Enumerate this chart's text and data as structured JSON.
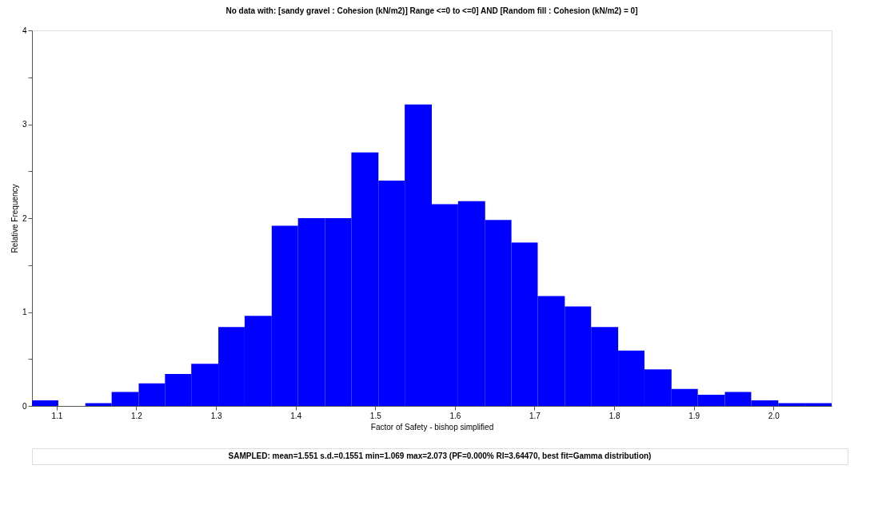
{
  "chart_data": {
    "type": "histogram",
    "title": "No data with: [sandy gravel : Cohesion (kN/m2)] Range <=0 to <=0] AND [Random fill : Cohesion (kN/m2) = 0]",
    "xlabel": "Factor of Safety - bishop simplified",
    "ylabel": "Relative Frequency",
    "annotations": [
      "SAMPLED: mean=1.551 s.d.=0.1551 min=1.069 max=2.073 (PF=0.000% RI=3.64470, best fit=Gamma distribution)"
    ],
    "bins": [
      1.069,
      1.102,
      1.136,
      1.169,
      1.203,
      1.236,
      1.269,
      1.303,
      1.336,
      1.37,
      1.403,
      1.437,
      1.47,
      1.504,
      1.537,
      1.571,
      1.604,
      1.638,
      1.671,
      1.704,
      1.738,
      1.771,
      1.805,
      1.838,
      1.872,
      1.905,
      1.939,
      1.972,
      2.006,
      2.039,
      2.073
    ],
    "values": [
      0.06,
      0,
      0.03,
      0.15,
      0.24,
      0.34,
      0.45,
      0.84,
      0.96,
      1.92,
      2.0,
      2.0,
      2.7,
      2.4,
      3.21,
      2.15,
      2.18,
      1.98,
      1.74,
      1.17,
      1.06,
      0.84,
      0.59,
      0.39,
      0.18,
      0.12,
      0.15,
      0.06,
      0.03,
      0.03
    ],
    "color": "#0000ff",
    "xlim": [
      1.069,
      2.073
    ],
    "xticks": [
      1.1,
      1.2,
      1.3,
      1.4,
      1.5,
      1.6,
      1.7,
      1.8,
      1.9,
      {
        "value": 2.0,
        "label": "2.0"
      }
    ],
    "ylim": [
      0,
      4
    ],
    "yticks": [
      0,
      {
        "value": 0.5,
        "label": null
      },
      1,
      {
        "value": 1.5,
        "label": null
      },
      2,
      {
        "value": 2.5,
        "label": null
      },
      3,
      {
        "value": 3.5,
        "label": null
      },
      4
    ],
    "grid": false
  }
}
